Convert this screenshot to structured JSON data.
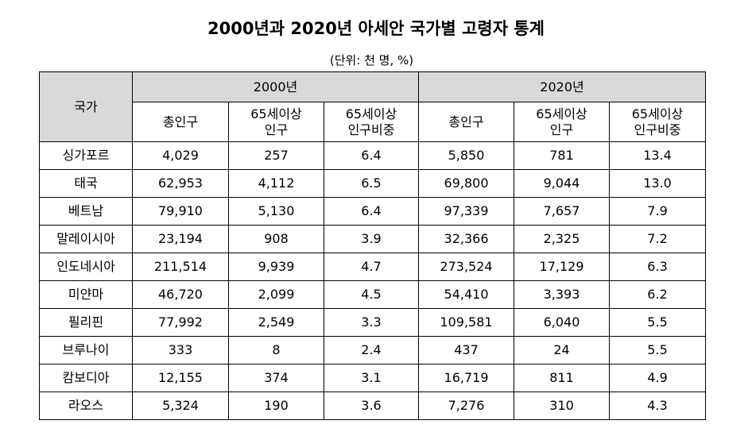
{
  "title": "2000년과 2020년 아세안 국가별 고령자 통계",
  "unit": "(단위: 천 명, %)",
  "table": {
    "header": {
      "country": "국가",
      "groups": [
        "2000년",
        "2020년"
      ],
      "subheaders": [
        [
          "총인구",
          "65세이상\n인구",
          "65세이상\n인구비중"
        ],
        [
          "총인구",
          "65세이상\n인구",
          "65세이상\n인구비중"
        ]
      ]
    },
    "rows": [
      [
        "싱가포르",
        "4,029",
        "257",
        "6.4",
        "5,850",
        "781",
        "13.4"
      ],
      [
        "태국",
        "62,953",
        "4,112",
        "6.5",
        "69,800",
        "9,044",
        "13.0"
      ],
      [
        "베트남",
        "79,910",
        "5,130",
        "6.4",
        "97,339",
        "7,657",
        "7.9"
      ],
      [
        "말레이시아",
        "23,194",
        "908",
        "3.9",
        "32,366",
        "2,325",
        "7.2"
      ],
      [
        "인도네시아",
        "211,514",
        "9,939",
        "4.7",
        "273,524",
        "17,129",
        "6.3"
      ],
      [
        "미얀마",
        "46,720",
        "2,099",
        "4.5",
        "54,410",
        "3,393",
        "6.2"
      ],
      [
        "필리핀",
        "77,992",
        "2,549",
        "3.3",
        "109,581",
        "6,040",
        "5.5"
      ],
      [
        "브루나이",
        "333",
        "8",
        "2.4",
        "437",
        "24",
        "5.5"
      ],
      [
        "캄보디아",
        "12,155",
        "374",
        "3.1",
        "16,719",
        "811",
        "4.9"
      ],
      [
        "라오스",
        "5,324",
        "190",
        "3.6",
        "7,276",
        "310",
        "4.3"
      ]
    ]
  }
}
